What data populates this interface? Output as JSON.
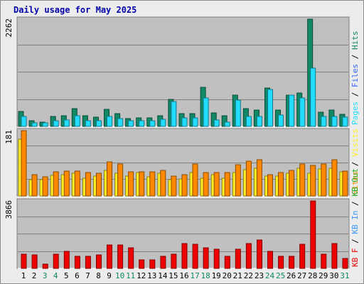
{
  "title": "Daily usage for May 2025",
  "colors": {
    "hits": "#118866",
    "files": "#22ddff",
    "pages": "#22ddff",
    "visits": "#ffee22",
    "sites": "#ff8800",
    "kb_f": "#ee0000",
    "kb_in": "#3399ff",
    "kb_out": "#22aa22",
    "panel_bg": "#c0c0c0",
    "frame_bg": "#ececec",
    "weekday_label": "#000000",
    "weekend_label": "#118866"
  },
  "chart_data": [
    {
      "type": "bar",
      "panel": "hits-files-pages",
      "max_label": "2262",
      "ylim": [
        0,
        2262
      ],
      "side_legend": [
        {
          "text": "Pages",
          "color": "#22ddff"
        },
        {
          "text": " / ",
          "color": "#000000"
        },
        {
          "text": "Files",
          "color": "#3366ff"
        },
        {
          "text": " / ",
          "color": "#000000"
        },
        {
          "text": "Hits",
          "color": "#118866"
        }
      ],
      "categories": [
        "1",
        "2",
        "3",
        "4",
        "5",
        "6",
        "7",
        "8",
        "9",
        "10",
        "11",
        "12",
        "13",
        "14",
        "15",
        "16",
        "17",
        "18",
        "19",
        "20",
        "21",
        "22",
        "23",
        "24",
        "25",
        "26",
        "27",
        "28",
        "29",
        "30",
        "31"
      ],
      "weekend": [
        false,
        false,
        true,
        true,
        false,
        false,
        false,
        false,
        false,
        true,
        true,
        false,
        false,
        false,
        false,
        false,
        true,
        true,
        false,
        false,
        false,
        false,
        false,
        true,
        true,
        false,
        false,
        false,
        false,
        false,
        true
      ],
      "series": [
        {
          "name": "Hits",
          "color": "#118866",
          "values": [
            318,
            118,
            97,
            207,
            230,
            372,
            230,
            197,
            355,
            268,
            170,
            178,
            178,
            230,
            576,
            275,
            271,
            827,
            292,
            225,
            656,
            372,
            341,
            811,
            348,
            655,
            709,
            2262,
            298,
            338,
            262
          ]
        },
        {
          "name": "Files",
          "color": "#22ddff",
          "values": [
            207,
            80,
            72,
            118,
            138,
            230,
            124,
            118,
            207,
            170,
            124,
            124,
            124,
            146,
            518,
            178,
            178,
            601,
            138,
            97,
            558,
            214,
            207,
            785,
            245,
            655,
            605,
            1224,
            207,
            207,
            199
          ]
        }
      ]
    },
    {
      "type": "bar",
      "panel": "visits-sites",
      "max_label": "181",
      "ylim": [
        0,
        181
      ],
      "side_legend": [
        {
          "text": "Sites",
          "color": "#ff8800"
        },
        {
          "text": " / ",
          "color": "#000000"
        },
        {
          "text": "Visits",
          "color": "#ffee22"
        }
      ],
      "categories": [
        "1",
        "2",
        "3",
        "4",
        "5",
        "6",
        "7",
        "8",
        "9",
        "10",
        "11",
        "12",
        "13",
        "14",
        "15",
        "16",
        "17",
        "18",
        "19",
        "20",
        "21",
        "22",
        "23",
        "24",
        "25",
        "26",
        "27",
        "28",
        "29",
        "30",
        "31"
      ],
      "series": [
        {
          "name": "Visits",
          "color": "#ffee22",
          "values": [
            157,
            45,
            45,
            58,
            60,
            62,
            50,
            55,
            71,
            62,
            55,
            64,
            54,
            62,
            45,
            48,
            64,
            50,
            60,
            50,
            64,
            73,
            77,
            55,
            55,
            62,
            76,
            62,
            75,
            77,
            67
          ]
        },
        {
          "name": "Sites",
          "color": "#ff8800",
          "values": [
            181,
            60,
            53,
            66,
            69,
            68,
            64,
            63,
            95,
            88,
            67,
            67,
            66,
            70,
            55,
            60,
            89,
            64,
            64,
            64,
            87,
            97,
            101,
            60,
            64,
            70,
            88,
            84,
            89,
            101,
            69
          ]
        }
      ]
    },
    {
      "type": "bar",
      "panel": "kbytes",
      "max_label": "3866",
      "ylim": [
        0,
        3866
      ],
      "side_legend": [
        {
          "text": "KB F",
          "color": "#ee0000"
        },
        {
          "text": " / ",
          "color": "#000000"
        },
        {
          "text": "KB In",
          "color": "#3399ff"
        },
        {
          "text": " / ",
          "color": "#000000"
        },
        {
          "text": "KB Out",
          "color": "#22aa22"
        }
      ],
      "categories": [
        "1",
        "2",
        "3",
        "4",
        "5",
        "6",
        "7",
        "8",
        "9",
        "10",
        "11",
        "12",
        "13",
        "14",
        "15",
        "16",
        "17",
        "18",
        "19",
        "20",
        "21",
        "22",
        "23",
        "24",
        "25",
        "26",
        "27",
        "28",
        "29",
        "30",
        "31"
      ],
      "series": [
        {
          "name": "KB F",
          "color": "#ee0000",
          "values": [
            816,
            768,
            264,
            816,
            960,
            672,
            672,
            768,
            1344,
            1344,
            1200,
            480,
            480,
            672,
            816,
            1440,
            1392,
            1200,
            1104,
            672,
            1104,
            1440,
            1632,
            960,
            672,
            672,
            1392,
            3866,
            816,
            1440,
            576
          ]
        }
      ]
    }
  ]
}
